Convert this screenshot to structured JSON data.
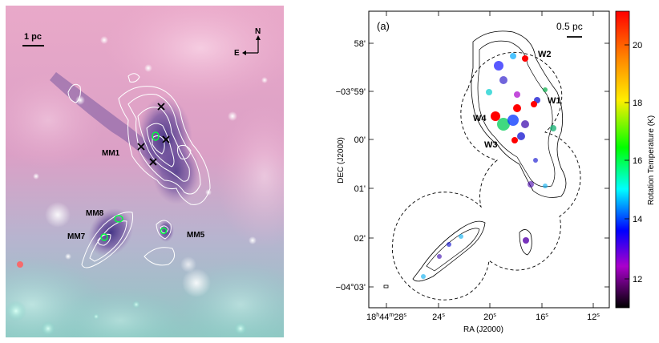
{
  "left_panel": {
    "scale_label": "1 pc",
    "north_label": "N",
    "east_label": "E",
    "sources": [
      {
        "name": "mm1",
        "label": "MM1"
      },
      {
        "name": "mm8",
        "label": "MM8"
      },
      {
        "name": "mm7",
        "label": "MM7"
      },
      {
        "name": "mm5",
        "label": "MM5"
      }
    ]
  },
  "right_panel": {
    "panel_label": "(a)",
    "scale_label": "0.5 pc",
    "ylabel": "DEC (J2000)",
    "xlabel": "RA (J2000)",
    "dec_ticks": [
      {
        "name": "58",
        "deg": "",
        "min": "58'"
      },
      {
        "name": "59",
        "deg": "−03°",
        "min": "59'"
      },
      {
        "name": "00",
        "deg": "",
        "min": "00'"
      },
      {
        "name": "01",
        "deg": "",
        "min": "01'"
      },
      {
        "name": "02",
        "deg": "",
        "min": "02'"
      },
      {
        "name": "03",
        "deg": "−04°",
        "min": "03'"
      }
    ],
    "ra_ticks": [
      {
        "name": "28",
        "h": "18",
        "hs": "h",
        "m": "44",
        "ms": "m",
        "s": "28",
        "ss": "s"
      },
      {
        "name": "24",
        "h": "",
        "hs": "",
        "m": "",
        "ms": "",
        "s": "24",
        "ss": "s"
      },
      {
        "name": "20",
        "h": "",
        "hs": "",
        "m": "",
        "ms": "",
        "s": "20",
        "ss": "s"
      },
      {
        "name": "16",
        "h": "",
        "hs": "",
        "m": "",
        "ms": "",
        "s": "16",
        "ss": "s"
      },
      {
        "name": "12",
        "h": "",
        "hs": "",
        "m": "",
        "ms": "",
        "s": "12",
        "ss": "s"
      }
    ],
    "sources": [
      {
        "name": "w2",
        "label": "W2"
      },
      {
        "name": "w1",
        "label": "W1"
      },
      {
        "name": "w4",
        "label": "W4"
      },
      {
        "name": "w3",
        "label": "W3"
      }
    ],
    "colorbar": {
      "label": "Rotation Temperature (K)",
      "ticks": [
        "20",
        "18",
        "16",
        "14",
        "12"
      ],
      "colors": [
        "#ff0000",
        "#ff8800",
        "#ffee00",
        "#00ff00",
        "#00ffff",
        "#0000ff",
        "#aa00cc",
        "#000000"
      ]
    }
  }
}
